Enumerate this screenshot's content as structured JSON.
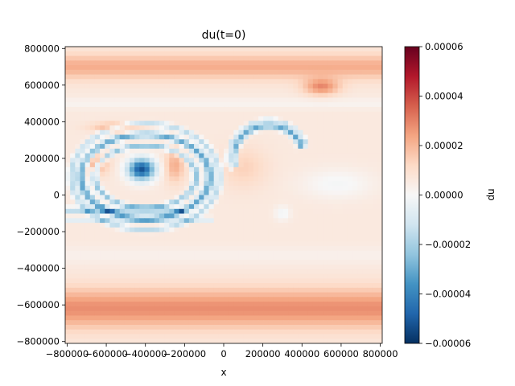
{
  "chart_data": {
    "type": "heatmap",
    "title": "du(t=0)",
    "xlabel": "x",
    "ylabel": "",
    "xlim": [
      -810000,
      810000
    ],
    "ylim": [
      -810000,
      810000
    ],
    "x_ticks": [
      -800000,
      -600000,
      -400000,
      -200000,
      0,
      200000,
      400000,
      600000,
      800000
    ],
    "x_tick_labels": [
      "−800000",
      "−600000",
      "−400000",
      "−200000",
      "0",
      "200000",
      "400000",
      "600000",
      "800000"
    ],
    "y_ticks": [
      -800000,
      -600000,
      -400000,
      -200000,
      0,
      200000,
      400000,
      600000,
      800000
    ],
    "y_tick_labels": [
      "−800000",
      "−600000",
      "−400000",
      "−200000",
      "0",
      "200000",
      "400000",
      "600000",
      "800000"
    ],
    "grid": false,
    "colormap": "RdBu_r",
    "colorbar": {
      "label": "du",
      "vmin": -6e-05,
      "vmax": 6e-05,
      "ticks": [
        -6e-05,
        -4e-05,
        -2e-05,
        0,
        2e-05,
        4e-05,
        6e-05
      ],
      "tick_labels": [
        "−0.00006",
        "−0.00004",
        "−0.00002",
        "0.00000",
        "0.00002",
        "0.00004",
        "0.00006"
      ],
      "stops": [
        "#053061",
        "#2166ac",
        "#4393c3",
        "#92c5de",
        "#d1e5f0",
        "#f7f7f7",
        "#fddbc7",
        "#f4a582",
        "#d6604d",
        "#b2182b",
        "#67001f"
      ]
    },
    "field_features": {
      "background": 6e-06,
      "bands": [
        {
          "y_center": -620000,
          "width": 110000,
          "value": 2.2e-05
        },
        {
          "y_center": 700000,
          "width": 70000,
          "value": 1.6e-05
        },
        {
          "y_center": 500000,
          "width": 30000,
          "value": -4e-06
        },
        {
          "y_center": -330000,
          "width": 45000,
          "value": -3e-06
        }
      ],
      "blobs": [
        {
          "x": -420000,
          "y": 140000,
          "sx": 70000,
          "sy": 60000,
          "value": -5.8e-05
        },
        {
          "x": 500000,
          "y": 590000,
          "sx": 90000,
          "sy": 45000,
          "value": 2.2e-05
        },
        {
          "x": -650000,
          "y": 170000,
          "sx": 60000,
          "sy": 60000,
          "value": 1.8e-05
        },
        {
          "x": -250000,
          "y": 160000,
          "sx": 50000,
          "sy": 90000,
          "value": 1.6e-05
        },
        {
          "x": -550000,
          "y": 370000,
          "sx": 120000,
          "sy": 25000,
          "value": 1.7e-05
        },
        {
          "x": 300000,
          "y": -100000,
          "sx": 40000,
          "sy": 40000,
          "value": -8e-06
        },
        {
          "x": 580000,
          "y": 60000,
          "sx": 180000,
          "sy": 80000,
          "value": -7e-06
        },
        {
          "x": 100000,
          "y": 150000,
          "sx": 120000,
          "sy": 110000,
          "value": 8e-06
        }
      ],
      "rings": [
        {
          "x": -400000,
          "y": 100000,
          "rx": 330000,
          "ry": 230000,
          "width": 16000,
          "value": -3.8e-05
        },
        {
          "x": -400000,
          "y": 100000,
          "rx": 260000,
          "ry": 170000,
          "width": 12000,
          "value": -3e-05
        },
        {
          "x": -400000,
          "y": 100000,
          "rx": 380000,
          "ry": 290000,
          "width": 14000,
          "value": -2.2e-05
        }
      ],
      "arcs": [
        {
          "x": 230000,
          "y": 200000,
          "r": 180000,
          "width": 18000,
          "a0": 15,
          "a1": 200,
          "value": -3.8e-05
        },
        {
          "x": 230000,
          "y": 200000,
          "r": 210000,
          "width": 10000,
          "a0": 20,
          "a1": 190,
          "value": -1.8e-05
        }
      ],
      "lines": [
        {
          "y": -80000,
          "x0": -800000,
          "x1": -200000,
          "width": 12000,
          "value": -3.5e-05
        },
        {
          "y": -130000,
          "x0": -800000,
          "x1": -50000,
          "width": 10000,
          "value": -2.8e-05
        }
      ]
    }
  }
}
